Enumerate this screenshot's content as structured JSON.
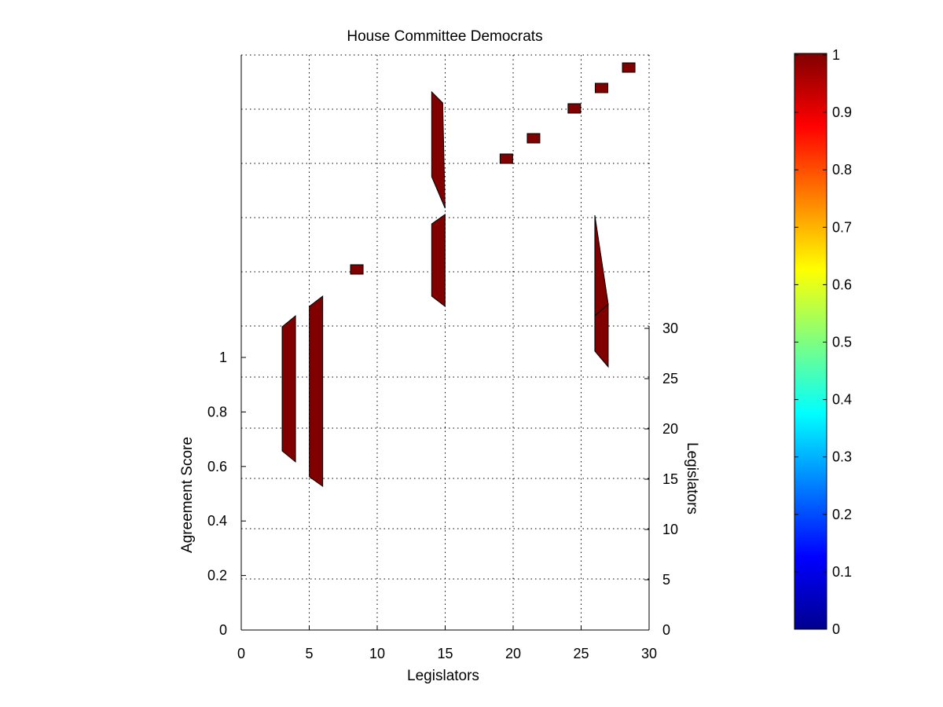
{
  "chart_data": {
    "type": "3d-bar",
    "title": "House Committee Democrats",
    "xlabel": "Legislators",
    "ylabel": "Legislators",
    "zlabel": "Agreement Score",
    "xlim": [
      0,
      30
    ],
    "ylim": [
      0,
      30
    ],
    "zlim": [
      0,
      1
    ],
    "x_ticks": [
      "0",
      "5",
      "10",
      "15",
      "20",
      "25",
      "30"
    ],
    "y_ticks": [
      "0",
      "5",
      "10",
      "15",
      "20",
      "25",
      "30"
    ],
    "z_ticks": [
      "0",
      "0.2",
      "0.4",
      "0.6",
      "0.8",
      "1"
    ],
    "grid": true,
    "colormap": "jet",
    "colorbar": {
      "range": [
        0,
        1
      ],
      "ticks": [
        "0",
        "0.1",
        "0.2",
        "0.3",
        "0.4",
        "0.5",
        "0.6",
        "0.7",
        "0.8",
        "0.9",
        "1"
      ]
    },
    "bar_color": "#800000",
    "visible_columns": [
      {
        "x": 3.5,
        "kind": "column"
      },
      {
        "x": 5.5,
        "kind": "column"
      },
      {
        "x": 8.5,
        "kind": "cap"
      },
      {
        "x": 14.5,
        "kind": "column"
      },
      {
        "x": 19.5,
        "kind": "cap"
      },
      {
        "x": 21.5,
        "kind": "cap"
      },
      {
        "x": 24.5,
        "kind": "cap"
      },
      {
        "x": 26.5,
        "kind": "cap"
      },
      {
        "x": 26.5,
        "kind": "column"
      },
      {
        "x": 28.5,
        "kind": "cap"
      }
    ]
  }
}
